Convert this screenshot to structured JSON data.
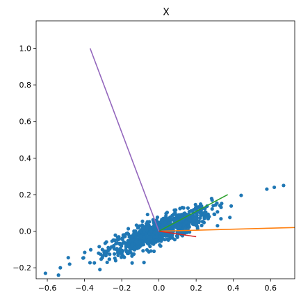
{
  "chart_data": {
    "type": "scatter",
    "title": "X",
    "xlabel": "",
    "ylabel": "",
    "xlim": [
      -0.66,
      0.73
    ],
    "ylim": [
      -0.26,
      1.15
    ],
    "x_ticks": [
      -0.6,
      -0.4,
      -0.2,
      0.0,
      0.2,
      0.4,
      0.6
    ],
    "x_tick_labels": [
      "−0.6",
      "−0.4",
      "−0.2",
      "0.0",
      "0.2",
      "0.4",
      "0.6"
    ],
    "y_ticks": [
      -0.2,
      0.0,
      0.2,
      0.4,
      0.6,
      0.8,
      1.0
    ],
    "y_tick_labels": [
      "−0.2",
      "0.0",
      "0.2",
      "0.4",
      "0.6",
      "0.8",
      "1.0"
    ],
    "grid": false,
    "legend": "none",
    "scatter": {
      "color": "#1f77b4",
      "trend_slope": 0.38,
      "trend_intercept": 0.0,
      "x_spread": 0.14,
      "noise": 0.035,
      "count": 850,
      "extra_points": [
        {
          "x": -0.61,
          "y": -0.23
        },
        {
          "x": -0.54,
          "y": -0.24
        },
        {
          "x": -0.53,
          "y": -0.2
        },
        {
          "x": -0.48,
          "y": -0.18
        },
        {
          "x": 0.58,
          "y": 0.23
        },
        {
          "x": 0.62,
          "y": 0.24
        },
        {
          "x": 0.67,
          "y": 0.25
        }
      ]
    },
    "lines": [
      {
        "color": "#ff7f0e",
        "x": [
          0.0,
          0.73
        ],
        "y": [
          0.0,
          0.02
        ]
      },
      {
        "color": "#2ca02c",
        "x": [
          0.0,
          0.37
        ],
        "y": [
          0.0,
          0.2
        ]
      },
      {
        "color": "#d62728",
        "x": [
          0.0,
          0.2
        ],
        "y": [
          0.0,
          -0.03
        ]
      },
      {
        "color": "#9467bd",
        "x": [
          0.0,
          -0.37
        ],
        "y": [
          0.0,
          1.0
        ]
      }
    ]
  }
}
